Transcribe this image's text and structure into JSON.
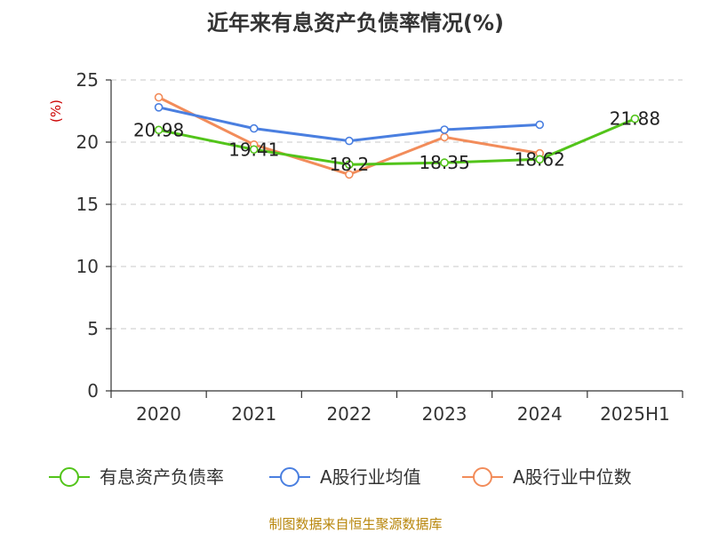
{
  "chart_data": {
    "type": "line",
    "title": "近年来有息资产负债率情况(%)",
    "ylabel": "(%)",
    "xlabel": "",
    "categories": [
      "2020",
      "2021",
      "2022",
      "2023",
      "2024",
      "2025H1"
    ],
    "ylim": [
      0,
      25
    ],
    "yticks": [
      "0",
      "5",
      "10",
      "15",
      "20",
      "25"
    ],
    "grid": true,
    "legend_position": "bottom",
    "series": [
      {
        "name": "有息资产负债率",
        "color": "#52c41a",
        "values": [
          20.98,
          19.41,
          18.2,
          18.35,
          18.62,
          21.88
        ],
        "labels": [
          "20.98",
          "19.41",
          "18.2",
          "18.35",
          "18.62",
          "21.88"
        ]
      },
      {
        "name": "A股行业均值",
        "color": "#4a7fe0",
        "values": [
          22.8,
          21.1,
          20.1,
          21.0,
          21.4,
          null
        ]
      },
      {
        "name": "A股行业中位数",
        "color": "#f28c5a",
        "values": [
          23.6,
          19.8,
          17.4,
          20.4,
          19.1,
          null
        ]
      }
    ]
  },
  "source_text": "制图数据来自恒生聚源数据库"
}
